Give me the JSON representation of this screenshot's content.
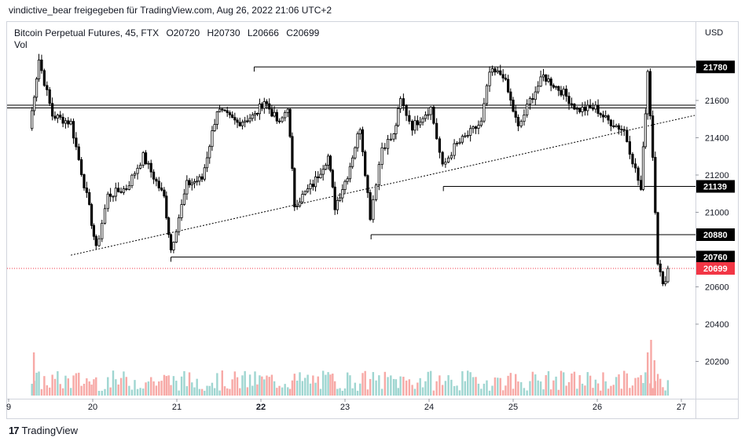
{
  "caption": "vindictive_bear freigegeben für TradingView.com, Aug 26, 2022 21:06 UTC+2",
  "legend": {
    "symbol": "Bitcoin Perpetual Futures, 45, FTX",
    "open": "O20720",
    "high": "H20730",
    "low": "L20666",
    "close": "C20699",
    "volume_label": "Vol"
  },
  "footer": {
    "logo": "17",
    "brand": "TradingView"
  },
  "colors": {
    "up": "#ffffff",
    "down": "#000000",
    "wick": "#000000",
    "vol_up": "#9fd6d1",
    "vol_down": "#f7a9a6",
    "current_price": "#f23645",
    "level_label_bg": "#000000"
  },
  "chart_data": {
    "type": "candlestick",
    "symbol": "Bitcoin Perpetual Futures",
    "interval": "45",
    "exchange": "FTX",
    "currency": "USD",
    "ylim": [
      20050,
      22050
    ],
    "y_ticks": [
      "21600",
      "21400",
      "21200",
      "21000",
      "20600",
      "20400",
      "20200"
    ],
    "x_ticks": [
      {
        "label": "9",
        "day": 19,
        "bold": false
      },
      {
        "label": "20",
        "day": 20,
        "bold": false
      },
      {
        "label": "21",
        "day": 21,
        "bold": false
      },
      {
        "label": "22",
        "day": 22,
        "bold": true
      },
      {
        "label": "23",
        "day": 23,
        "bold": false
      },
      {
        "label": "24",
        "day": 24,
        "bold": false
      },
      {
        "label": "25",
        "day": 25,
        "bold": false
      },
      {
        "label": "26",
        "day": 26,
        "bold": false
      },
      {
        "label": "27",
        "day": 27,
        "bold": false
      }
    ],
    "price_levels": [
      {
        "value": 21780,
        "label": "21780",
        "from_day": 21.92
      },
      {
        "value": 21139,
        "label": "21139",
        "from_day": 24.17
      },
      {
        "value": 20880,
        "label": "20880",
        "from_day": 23.31
      },
      {
        "value": 20760,
        "label": "20760",
        "from_day": 20.93
      }
    ],
    "double_lines": [
      21560,
      21575
    ],
    "current_price": {
      "value": 20699,
      "label": "20699"
    },
    "trendline": {
      "from": {
        "day": 19.74,
        "value": 20770
      },
      "to": {
        "day": 27.16,
        "value": 21520
      }
    },
    "anchors": [
      [
        19.25,
        21450
      ],
      [
        19.36,
        21820
      ],
      [
        19.52,
        21520
      ],
      [
        19.74,
        21480
      ],
      [
        19.96,
        21020
      ],
      [
        20.04,
        20800
      ],
      [
        20.18,
        21090
      ],
      [
        20.4,
        21130
      ],
      [
        20.6,
        21300
      ],
      [
        20.85,
        21080
      ],
      [
        20.93,
        20800
      ],
      [
        21.12,
        21150
      ],
      [
        21.3,
        21180
      ],
      [
        21.48,
        21550
      ],
      [
        21.72,
        21480
      ],
      [
        21.93,
        21520
      ],
      [
        22.04,
        21600
      ],
      [
        22.22,
        21470
      ],
      [
        22.32,
        21570
      ],
      [
        22.4,
        21040
      ],
      [
        22.62,
        21150
      ],
      [
        22.8,
        21300
      ],
      [
        22.88,
        21030
      ],
      [
        23.03,
        21200
      ],
      [
        23.18,
        21460
      ],
      [
        23.3,
        20980
      ],
      [
        23.44,
        21350
      ],
      [
        23.58,
        21410
      ],
      [
        23.66,
        21600
      ],
      [
        23.8,
        21460
      ],
      [
        24.02,
        21560
      ],
      [
        24.16,
        21240
      ],
      [
        24.3,
        21350
      ],
      [
        24.62,
        21480
      ],
      [
        24.72,
        21750
      ],
      [
        24.88,
        21740
      ],
      [
        25.06,
        21450
      ],
      [
        25.2,
        21600
      ],
      [
        25.36,
        21730
      ],
      [
        25.6,
        21640
      ],
      [
        25.76,
        21550
      ],
      [
        25.98,
        21560
      ],
      [
        26.1,
        21500
      ],
      [
        26.32,
        21440
      ],
      [
        26.52,
        21120
      ],
      [
        26.6,
        21760
      ],
      [
        26.66,
        21300
      ],
      [
        26.72,
        20740
      ],
      [
        26.78,
        20600
      ],
      [
        26.84,
        20699
      ]
    ],
    "volume_spikes": [
      {
        "day": 19.3,
        "height": 0.55
      },
      {
        "day": 26.6,
        "height": 0.55
      },
      {
        "day": 26.64,
        "height": 0.71
      },
      {
        "day": 26.68,
        "height": 0.45
      }
    ],
    "volume_axis_labels": [
      "20400",
      "20200"
    ]
  }
}
